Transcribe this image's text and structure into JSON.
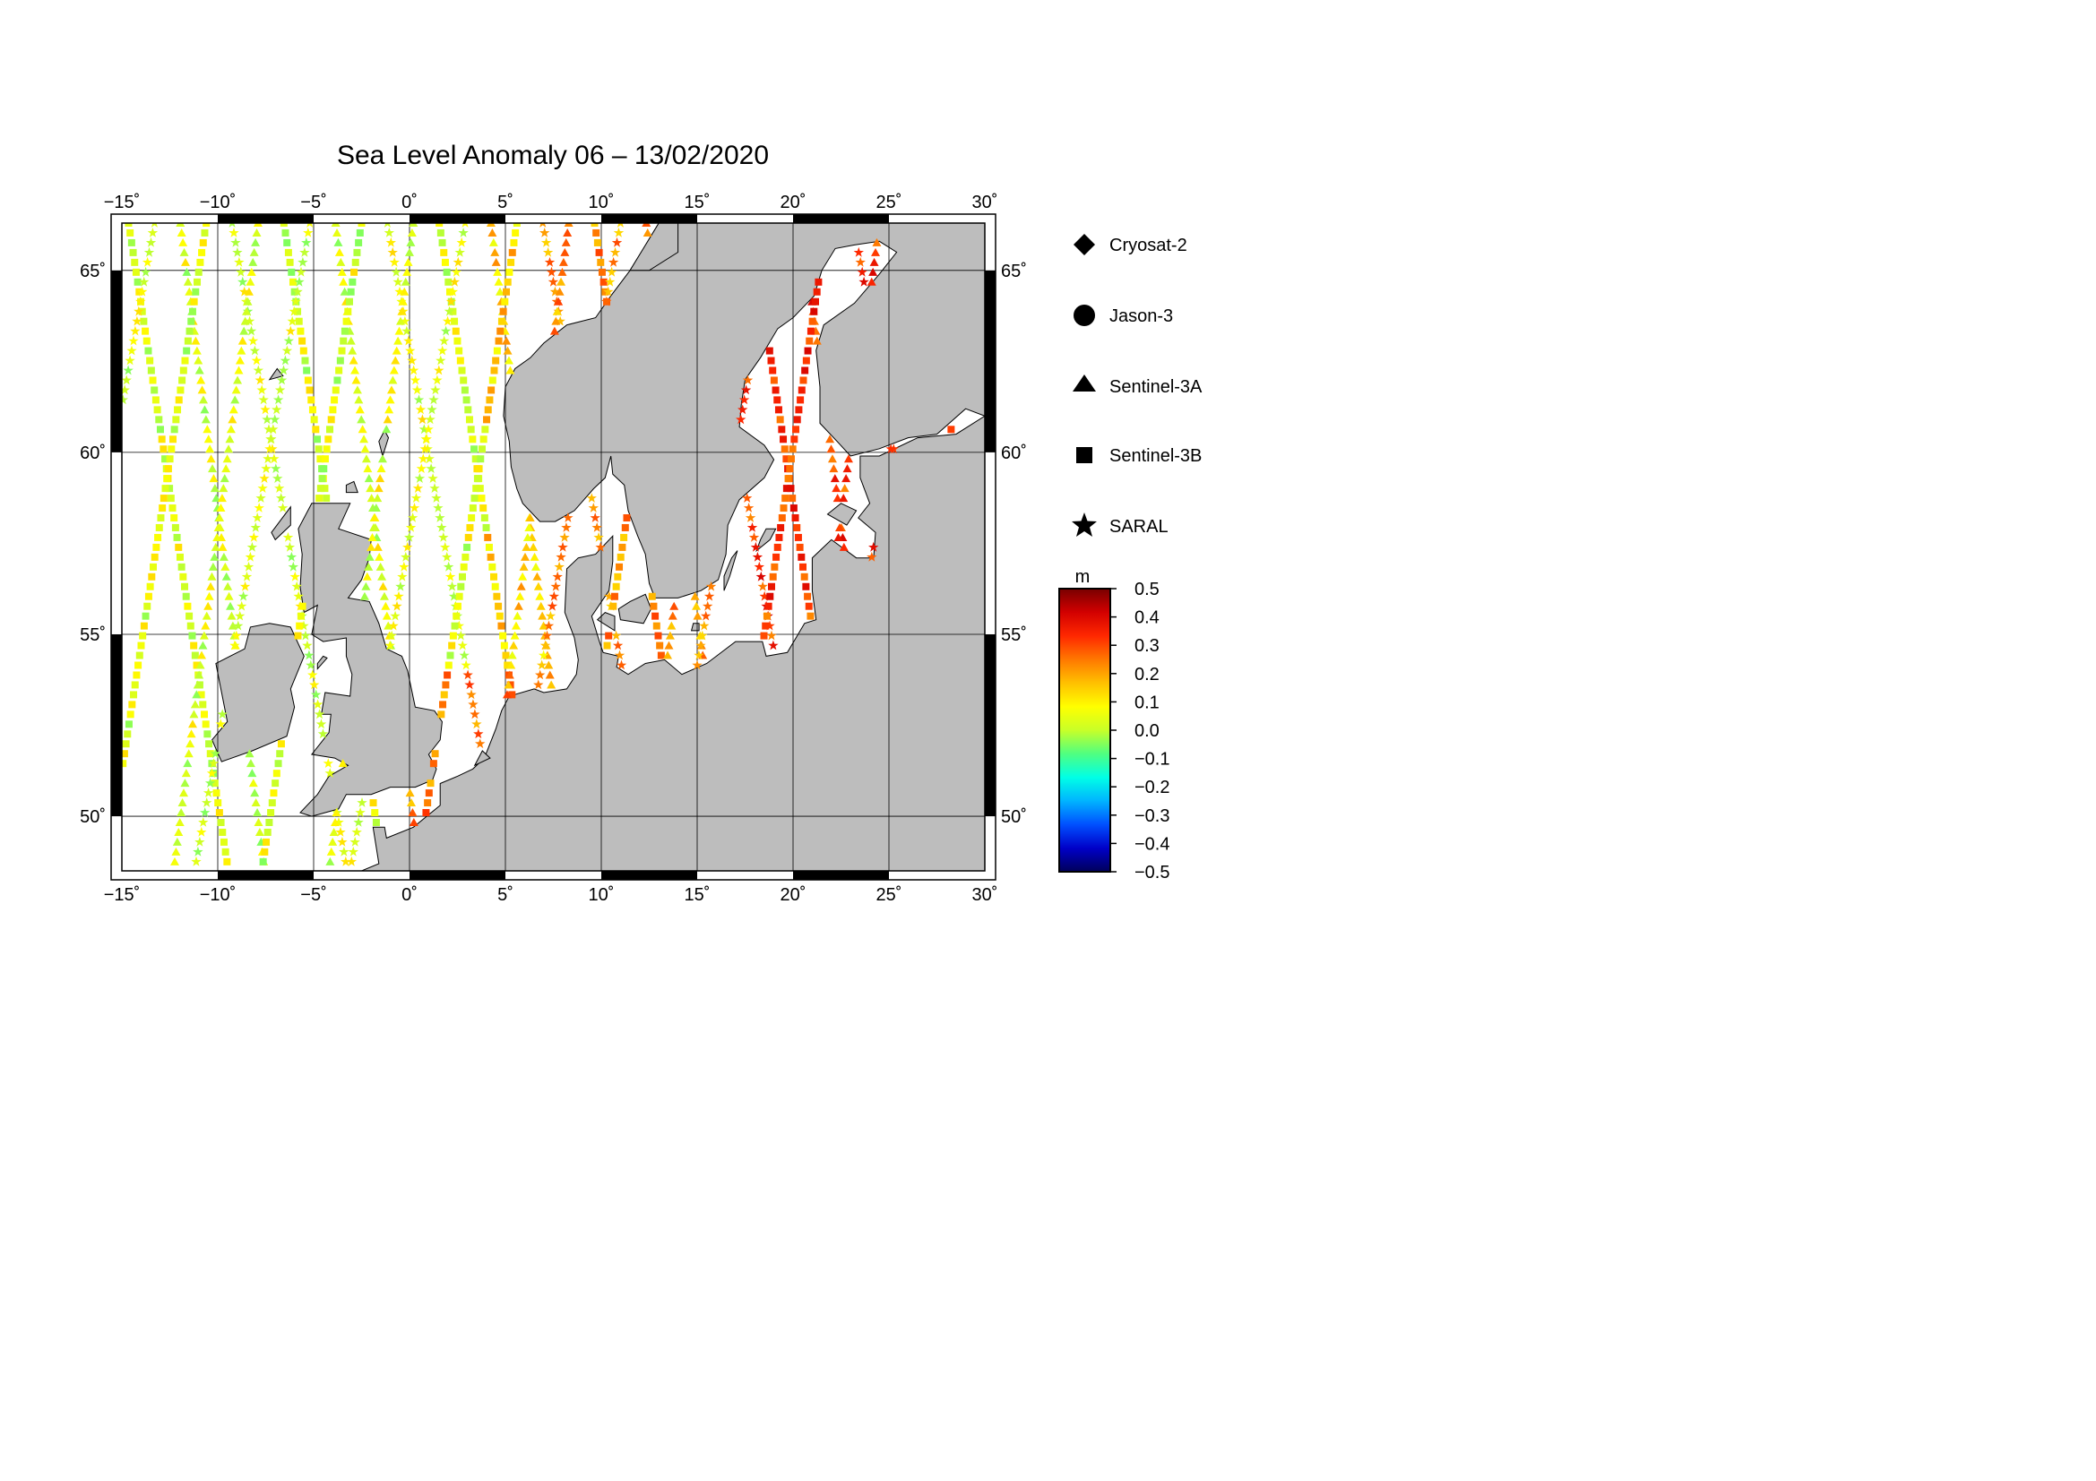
{
  "title": "Sea Level Anomaly 06 – 13/02/2020",
  "map": {
    "lon_range": [
      -15,
      30
    ],
    "lat_range": [
      48.5,
      66.3
    ],
    "lon_ticks": [
      {
        "v": -15,
        "t": "−15˚"
      },
      {
        "v": -10,
        "t": "−10˚"
      },
      {
        "v": -5,
        "t": "−5˚"
      },
      {
        "v": 0,
        "t": "0˚"
      },
      {
        "v": 5,
        "t": "5˚"
      },
      {
        "v": 10,
        "t": "10˚"
      },
      {
        "v": 15,
        "t": "15˚"
      },
      {
        "v": 20,
        "t": "20˚"
      },
      {
        "v": 25,
        "t": "25˚"
      },
      {
        "v": 30,
        "t": "30˚"
      }
    ],
    "lat_ticks": [
      {
        "v": 50,
        "t": "50˚"
      },
      {
        "v": 55,
        "t": "55˚"
      },
      {
        "v": 60,
        "t": "60˚"
      },
      {
        "v": 65,
        "t": "65˚"
      }
    ],
    "colors": {
      "land": "#bdbdbd",
      "sea": "#ffffff",
      "grid": "#000000"
    }
  },
  "legend": {
    "items": [
      {
        "label": "Cryosat-2",
        "icon": "diamond-icon"
      },
      {
        "label": "Jason-3",
        "icon": "circle-icon"
      },
      {
        "label": "Sentinel-3A",
        "icon": "triangle-icon"
      },
      {
        "label": "Sentinel-3B",
        "icon": "square-icon"
      },
      {
        "label": "SARAL",
        "icon": "star-icon"
      }
    ]
  },
  "colorbar": {
    "unit": "m",
    "min": -0.5,
    "max": 0.5,
    "ticks": [
      "0.5",
      "0.4",
      "0.3",
      "0.2",
      "0.1",
      "0.0",
      "−0.1",
      "−0.2",
      "−0.3",
      "−0.4",
      "−0.5"
    ],
    "stops": [
      "#00005a",
      "#0000c8",
      "#0050ff",
      "#00b4ff",
      "#00ffe6",
      "#50ff80",
      "#c8ff28",
      "#ffff00",
      "#ffc000",
      "#ff7800",
      "#ff2800",
      "#d20000",
      "#780000"
    ]
  }
}
